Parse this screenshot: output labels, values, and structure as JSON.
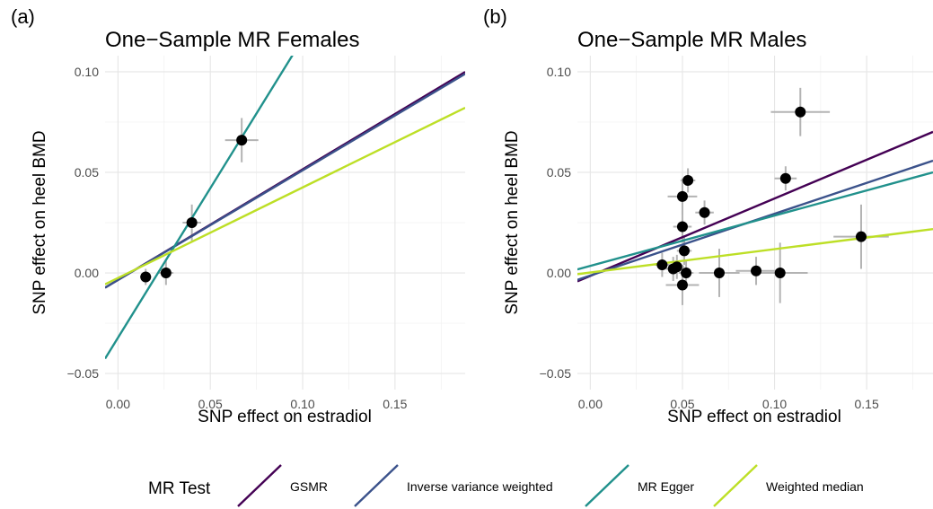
{
  "legend": {
    "title": "MR Test",
    "entries": [
      {
        "name": "GSMR",
        "color": "#440154"
      },
      {
        "name": "Inverse variance weighted",
        "color": "#3b528b"
      },
      {
        "name": "MR Egger",
        "color": "#21918c"
      },
      {
        "name": "Weighted median",
        "color": "#bddf26"
      }
    ]
  },
  "chart_data": [
    {
      "type": "scatter",
      "panel_label": "(a)",
      "title": "One−Sample MR Females",
      "xlabel": "SNP effect on estradiol",
      "ylabel": "SNP effect on heel BMD",
      "xlim": [
        -0.007,
        0.188
      ],
      "ylim": [
        -0.058,
        0.108
      ],
      "xticks": [
        0.0,
        0.05,
        0.1,
        0.15
      ],
      "xtick_labels": [
        "0.00",
        "0.05",
        "0.10",
        "0.15"
      ],
      "yticks": [
        -0.05,
        0.0,
        0.05,
        0.1
      ],
      "ytick_labels": [
        "−0.05",
        "0.00",
        "0.05",
        "0.10"
      ],
      "grid": true,
      "points": [
        {
          "x": 0.015,
          "y": -0.002,
          "xerr": 0.003,
          "yerr": 0.004
        },
        {
          "x": 0.026,
          "y": 0.0,
          "xerr": 0.004,
          "yerr": 0.006
        },
        {
          "x": 0.04,
          "y": 0.025,
          "xerr": 0.005,
          "yerr": 0.009
        },
        {
          "x": 0.067,
          "y": 0.066,
          "xerr": 0.009,
          "yerr": 0.011
        }
      ],
      "lines": [
        {
          "name": "GSMR",
          "intercept": -0.0035,
          "slope": 0.55
        },
        {
          "name": "Inverse variance weighted",
          "intercept": -0.0035,
          "slope": 0.545
        },
        {
          "name": "MR Egger",
          "intercept": -0.0322,
          "slope": 1.486
        },
        {
          "name": "Weighted median",
          "intercept": -0.0025,
          "slope": 0.45
        }
      ]
    },
    {
      "type": "scatter",
      "panel_label": "(b)",
      "title": "One−Sample MR Males",
      "xlabel": "SNP effect on estradiol",
      "ylabel": "SNP effect on heel BMD",
      "xlim": [
        -0.007,
        0.186
      ],
      "ylim": [
        -0.058,
        0.108
      ],
      "xticks": [
        0.0,
        0.05,
        0.1,
        0.15
      ],
      "xtick_labels": [
        "0.00",
        "0.05",
        "0.10",
        "0.15"
      ],
      "yticks": [
        -0.05,
        0.0,
        0.05,
        0.1
      ],
      "ytick_labels": [
        "−0.05",
        "0.00",
        "0.05",
        "0.10"
      ],
      "grid": true,
      "points": [
        {
          "x": 0.039,
          "y": 0.004,
          "xerr": 0.004,
          "yerr": 0.006
        },
        {
          "x": 0.045,
          "y": 0.002,
          "xerr": 0.004,
          "yerr": 0.006
        },
        {
          "x": 0.047,
          "y": 0.003,
          "xerr": 0.004,
          "yerr": 0.006
        },
        {
          "x": 0.05,
          "y": 0.038,
          "xerr": 0.008,
          "yerr": 0.009
        },
        {
          "x": 0.05,
          "y": 0.023,
          "xerr": 0.005,
          "yerr": 0.008
        },
        {
          "x": 0.05,
          "y": -0.006,
          "xerr": 0.009,
          "yerr": 0.01
        },
        {
          "x": 0.051,
          "y": 0.011,
          "xerr": 0.004,
          "yerr": 0.007
        },
        {
          "x": 0.052,
          "y": 0.0,
          "xerr": 0.004,
          "yerr": 0.006
        },
        {
          "x": 0.053,
          "y": 0.046,
          "xerr": 0.004,
          "yerr": 0.006
        },
        {
          "x": 0.062,
          "y": 0.03,
          "xerr": 0.005,
          "yerr": 0.006
        },
        {
          "x": 0.07,
          "y": 0.0,
          "xerr": 0.011,
          "yerr": 0.012
        },
        {
          "x": 0.09,
          "y": 0.001,
          "xerr": 0.011,
          "yerr": 0.007
        },
        {
          "x": 0.103,
          "y": 0.0,
          "xerr": 0.015,
          "yerr": 0.015
        },
        {
          "x": 0.106,
          "y": 0.047,
          "xerr": 0.006,
          "yerr": 0.006
        },
        {
          "x": 0.114,
          "y": 0.08,
          "xerr": 0.016,
          "yerr": 0.012
        },
        {
          "x": 0.147,
          "y": 0.018,
          "xerr": 0.015,
          "yerr": 0.016
        }
      ],
      "lines": [
        {
          "name": "GSMR",
          "intercept": -0.0015,
          "slope": 0.385
        },
        {
          "name": "Inverse variance weighted",
          "intercept": -0.0013,
          "slope": 0.307
        },
        {
          "name": "MR Egger",
          "intercept": 0.0035,
          "slope": 0.25
        },
        {
          "name": "Weighted median",
          "intercept": 0.0002,
          "slope": 0.116
        }
      ]
    }
  ]
}
